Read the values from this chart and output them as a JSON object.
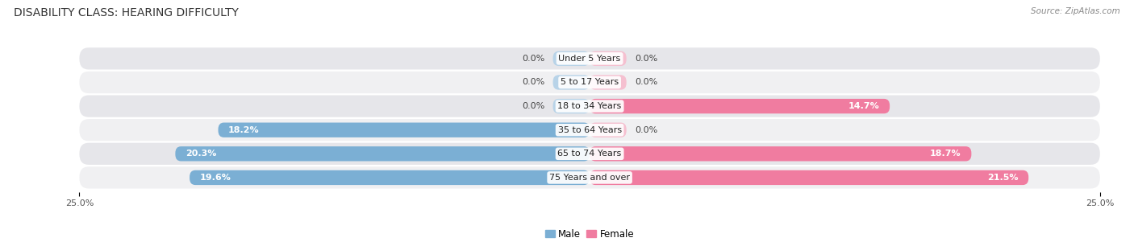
{
  "title": "DISABILITY CLASS: HEARING DIFFICULTY",
  "source_text": "Source: ZipAtlas.com",
  "categories": [
    "Under 5 Years",
    "5 to 17 Years",
    "18 to 34 Years",
    "35 to 64 Years",
    "65 to 74 Years",
    "75 Years and over"
  ],
  "male_values": [
    0.0,
    0.0,
    0.0,
    18.2,
    20.3,
    19.6
  ],
  "female_values": [
    0.0,
    0.0,
    14.7,
    0.0,
    18.7,
    21.5
  ],
  "male_color": "#7bafd4",
  "female_color": "#f07ca0",
  "male_color_light": "#b8d3e8",
  "female_color_light": "#f5c0d0",
  "row_bg_color_odd": "#f0f0f2",
  "row_bg_color_even": "#e6e6ea",
  "x_max": 25.0,
  "x_min": -25.0,
  "title_fontsize": 10,
  "label_fontsize": 8,
  "tick_fontsize": 8,
  "source_fontsize": 7.5,
  "background_color": "#ffffff"
}
